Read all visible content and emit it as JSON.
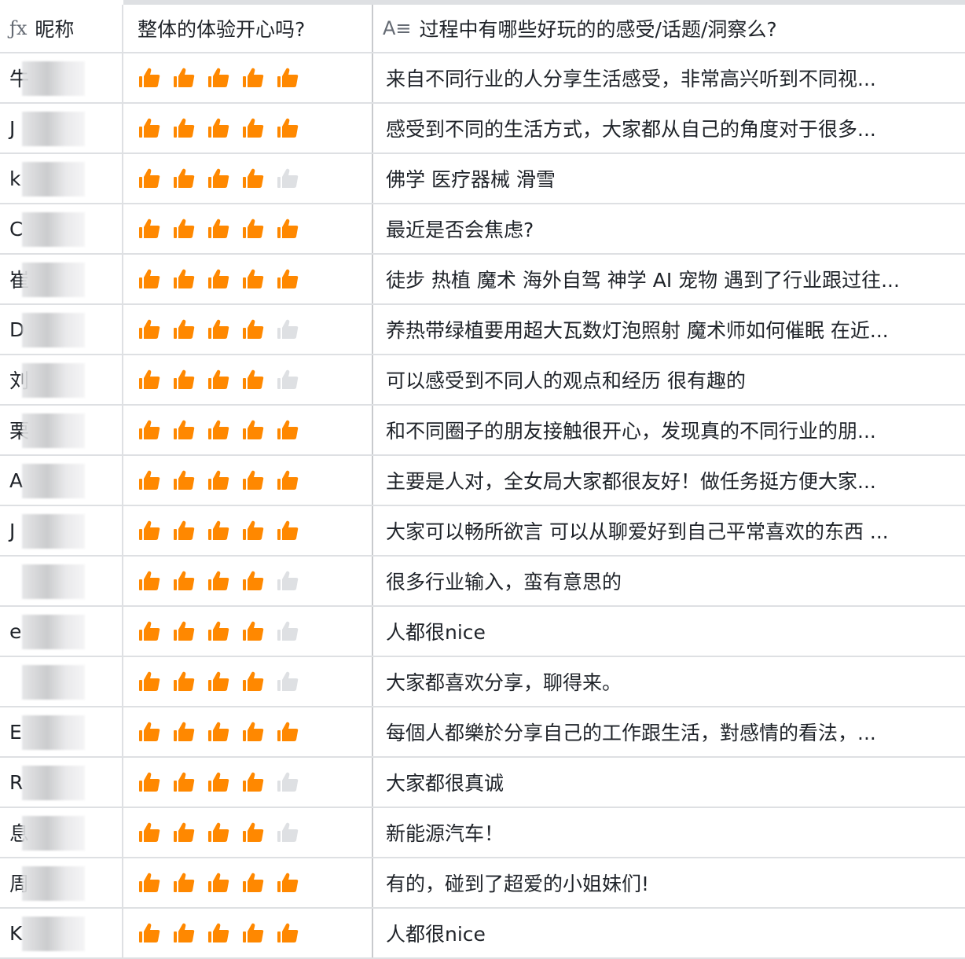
{
  "header": {
    "name_col": "昵称",
    "name_icon": "formula-icon",
    "rating_col": "整体的体验开心吗?",
    "text_col": "过程中有哪些好玩的的感受/话题/洞察么?",
    "text_icon": "text-field-icon"
  },
  "colors": {
    "thumb_on": "#ff8800",
    "thumb_off": "#dee0e3"
  },
  "rating_max": 5,
  "rows": [
    {
      "name": "牛",
      "rating": 5,
      "text": "来自不同行业的人分享生活感受，非常高兴听到不同视..."
    },
    {
      "name": "J",
      "rating": 5,
      "text": "感受到不同的生活方式，大家都从自己的角度对于很多..."
    },
    {
      "name": "k",
      "rating": 4,
      "text": "佛学 医疗器械 滑雪"
    },
    {
      "name": "C",
      "rating": 5,
      "text": "最近是否会焦虑?"
    },
    {
      "name": "崔",
      "rating": 5,
      "text": "徒步 热植 魔术 海外自驾 神学 AI 宠物 遇到了行业跟过往..."
    },
    {
      "name": "D",
      "rating": 4,
      "text": "养热带绿植要用超大瓦数灯泡照射 魔术师如何催眠 在近..."
    },
    {
      "name": "刘",
      "rating": 4,
      "text": "可以感受到不同人的观点和经历 很有趣的"
    },
    {
      "name": "栗",
      "rating": 5,
      "text": "和不同圈子的朋友接触很开心，发现真的不同行业的朋..."
    },
    {
      "name": "A",
      "rating": 5,
      "text": "主要是人对，全女局大家都很友好！做任务挺方便大家..."
    },
    {
      "name": "J",
      "rating": 5,
      "text": "大家可以畅所欲言 可以从聊爱好到自己平常喜欢的东西 ..."
    },
    {
      "name": "",
      "rating": 4,
      "text": "很多行业输入，蛮有意思的"
    },
    {
      "name": "e",
      "rating": 4,
      "text": "人都很nice"
    },
    {
      "name": "",
      "rating": 4,
      "text": "大家都喜欢分享，聊得来。"
    },
    {
      "name": "E",
      "rating": 5,
      "text": "每個人都樂於分享自己的工作跟生活，對感情的看法，..."
    },
    {
      "name": "R",
      "rating": 4,
      "text": "大家都很真诚"
    },
    {
      "name": "息",
      "rating": 4,
      "text": "新能源汽车！"
    },
    {
      "name": "周",
      "rating": 5,
      "text": "有的，碰到了超爱的小姐妹们!"
    },
    {
      "name": "K",
      "rating": 5,
      "text": "人都很nice"
    }
  ]
}
